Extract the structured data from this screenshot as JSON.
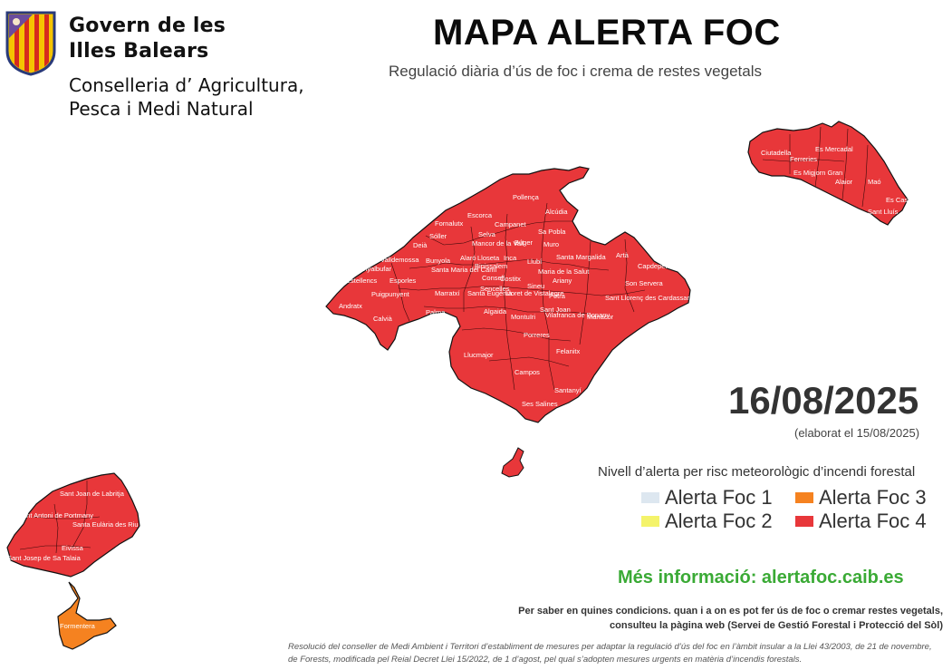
{
  "header": {
    "gov_line_1": "Govern de les",
    "gov_line_2": "Illes Balears",
    "dept_line_1": "Conselleria d’ Agricultura,",
    "dept_line_2": "Pesca i Medi Natural",
    "title": "MAPA ALERTA FOC",
    "subtitle": "Regulació diària d’ús de foc i crema de restes vegetals"
  },
  "date": {
    "value": "16/08/2025",
    "elaborated": "(elaborat el 15/08/2025)"
  },
  "legend": {
    "title": "Nivell d’alerta per risc meteorològic d’incendi forestal",
    "items": [
      {
        "label": "Alerta Foc 1",
        "color": "#dde7f0"
      },
      {
        "label": "Alerta Foc 2",
        "color": "#f4f36a"
      },
      {
        "label": "Alerta Foc 3",
        "color": "#f58220"
      },
      {
        "label": "Alerta Foc 4",
        "color": "#e8373a"
      }
    ]
  },
  "more_info": "Més informació: alertafoc.caib.es",
  "instructions": "Per saber en quines condicions. quan i a on es pot fer ús de foc o cremar restes vegetals, consulteu la pàgina web (Servei de Gestió Forestal i Protecció del Sòl)",
  "resolution": "Resolució del conseller de Medi Ambient i Territori d’establiment de mesures per adaptar la regulació d’ús del foc en l’àmbit insular a la Llei 43/2003, de 21 de novembre, de Forests, modificada pel Reial Decret Llei 15/2022, de 1 d’agost, pel qual s’adopten mesures urgents en matèria d’incendis forestals.",
  "map": {
    "colors": {
      "level4": "#e8373a",
      "level3": "#f58220",
      "border": "#111111"
    },
    "islands": [
      {
        "name": "Mallorca",
        "level": 4
      },
      {
        "name": "Menorca",
        "level": 4
      },
      {
        "name": "Eivissa",
        "level": 4
      },
      {
        "name": "Formentera",
        "level": 3
      },
      {
        "name": "Cabrera",
        "level": 4
      }
    ],
    "mallorca_labels": [
      "Pollença",
      "Alcúdia",
      "Escorca",
      "Fornalutx",
      "Sóller",
      "Campanet",
      "Sa Pobla",
      "Selva",
      "Mancor de la Vall",
      "Búger",
      "Muro",
      "Deià",
      "Valldemossa",
      "Bunyola",
      "Alaró",
      "Lloseta",
      "Inca",
      "Binissalem",
      "Llubí",
      "Santa Margalida",
      "Artà",
      "Capdepera",
      "Banyalbufar",
      "Santa Maria del Camí",
      "Consell",
      "Maria de la Salut",
      "Son Servera",
      "Estellencs",
      "Esporles",
      "Costitx",
      "Ariany",
      "Puigpunyent",
      "Marratxí",
      "Sencelles",
      "Sineu",
      "Petra",
      "Sant Llorenç des Cardassar",
      "Andratx",
      "Calvià",
      "Palma",
      "Santa Eugènia",
      "Lloret de Vistalegre",
      "Sant Joan",
      "Vilafranca de Bonany",
      "Manacor",
      "Algaida",
      "Montuïri",
      "Porreres",
      "Felanitx",
      "Llucmajor",
      "Campos",
      "Santanyí",
      "Ses Salines"
    ],
    "menorca_labels": [
      "Ciutadella",
      "Es Mercadal",
      "Ferreries",
      "Es Migjorn Gran",
      "Alaior",
      "Maó",
      "Es Castell",
      "Sant Lluís"
    ],
    "ibiza_labels": [
      "Sant Joan de Labritja",
      "Sant Antoni de Portmany",
      "Santa Eulària des Riu",
      "Eivissa",
      "Sant Josep de Sa Talaia"
    ],
    "formentera_label": "Formentera"
  }
}
